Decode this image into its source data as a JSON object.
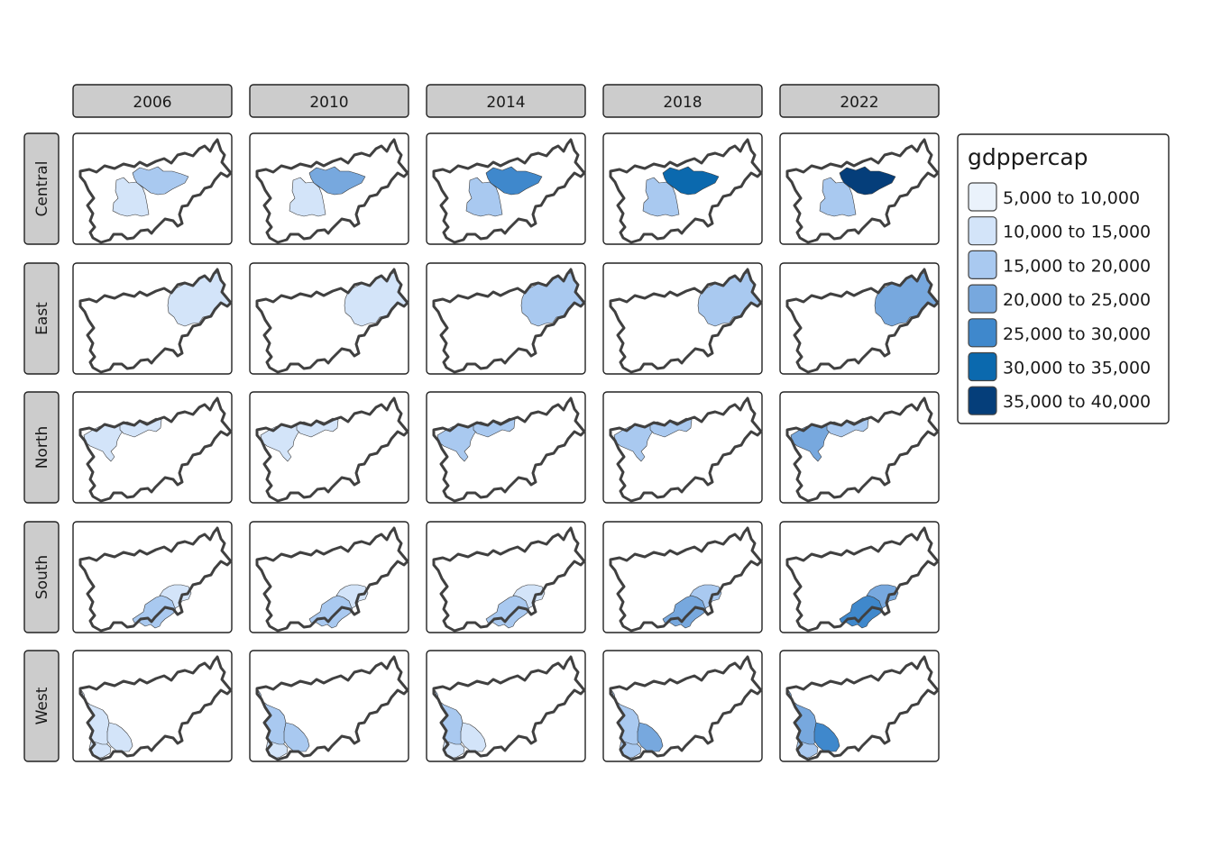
{
  "columns": [
    "2006",
    "2010",
    "2014",
    "2018",
    "2022"
  ],
  "rows": [
    "Central",
    "East",
    "North",
    "South",
    "West"
  ],
  "legend": {
    "title": "gdppercap",
    "items": [
      {
        "label": "5,000 to 10,000",
        "color": "#eaf2fb"
      },
      {
        "label": "10,000 to 15,000",
        "color": "#d3e4f9"
      },
      {
        "label": "15,000 to 20,000",
        "color": "#a9c9f0"
      },
      {
        "label": "20,000 to 25,000",
        "color": "#77a8de"
      },
      {
        "label": "25,000 to 30,000",
        "color": "#3f88cc"
      },
      {
        "label": "30,000 to 35,000",
        "color": "#0b69ae"
      },
      {
        "label": "35,000 to 40,000",
        "color": "#053e7a"
      }
    ]
  },
  "strip_color": "#cccccc",
  "fills": {
    "Central": [
      [
        1,
        2
      ],
      [
        1,
        3
      ],
      [
        2,
        4
      ],
      [
        2,
        5
      ],
      [
        2,
        6
      ]
    ],
    "East": [
      [
        1
      ],
      [
        1
      ],
      [
        2
      ],
      [
        2
      ],
      [
        3
      ]
    ],
    "North": [
      [
        1,
        1
      ],
      [
        1,
        1
      ],
      [
        2,
        2
      ],
      [
        2,
        2
      ],
      [
        3,
        2
      ]
    ],
    "South": [
      [
        2,
        1
      ],
      [
        2,
        1
      ],
      [
        2,
        1
      ],
      [
        3,
        2
      ],
      [
        4,
        3
      ]
    ],
    "West": [
      [
        1,
        1,
        1
      ],
      [
        2,
        2,
        1
      ],
      [
        2,
        1,
        1
      ],
      [
        2,
        3,
        2
      ],
      [
        3,
        4,
        2
      ]
    ]
  }
}
